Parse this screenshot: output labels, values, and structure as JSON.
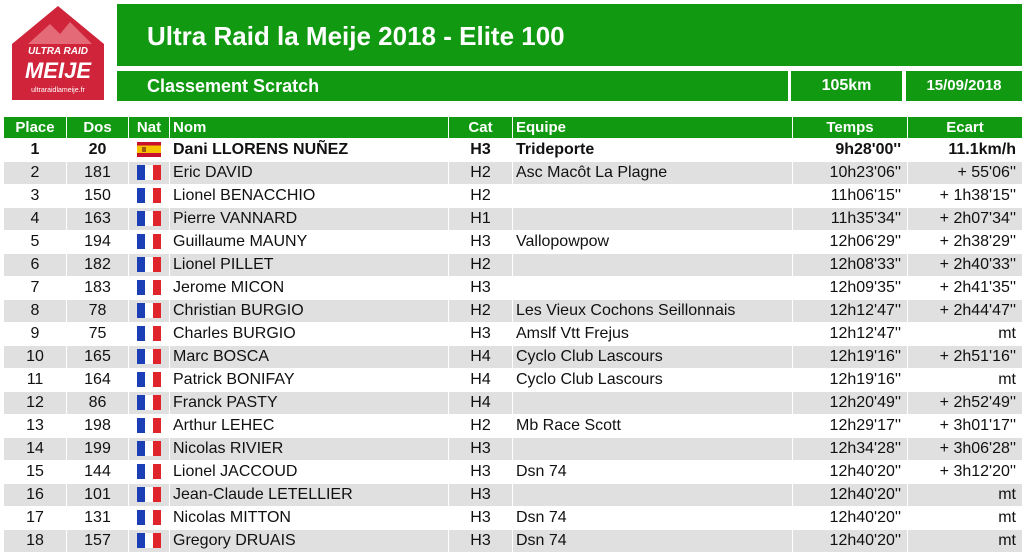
{
  "logo": {
    "line1": "ULTRA RAID",
    "line2": "MEIJE",
    "url": "ultraraidlameije.fr",
    "color": "#d0243b"
  },
  "header": {
    "title": "Ultra Raid la Meije 2018 - Elite 100",
    "subtitle": "Classement Scratch",
    "distance": "105km",
    "date": "15/09/2018"
  },
  "colors": {
    "accent": "#119a11",
    "row_alt": "#e0e0e0"
  },
  "columns": {
    "place": "Place",
    "dos": "Dos",
    "nat": "Nat",
    "nom": "Nom",
    "cat": "Cat",
    "equipe": "Equipe",
    "temps": "Temps",
    "ecart": "Ecart"
  },
  "rows": [
    {
      "place": "1",
      "dos": "20",
      "nat": "spain-flag-icon",
      "nom": "Dani LLORENS NUÑEZ",
      "cat": "H3",
      "equipe": "Trideporte",
      "temps": "9h28'00''",
      "ecart": "11.1km/h"
    },
    {
      "place": "2",
      "dos": "181",
      "nat": "france-flag-icon",
      "nom": "Eric DAVID",
      "cat": "H2",
      "equipe": "Asc Macôt La Plagne",
      "temps": "10h23'06''",
      "ecart": "+ 55'06''"
    },
    {
      "place": "3",
      "dos": "150",
      "nat": "france-flag-icon",
      "nom": "Lionel BENACCHIO",
      "cat": "H2",
      "equipe": "",
      "temps": "11h06'15''",
      "ecart": "+ 1h38'15''"
    },
    {
      "place": "4",
      "dos": "163",
      "nat": "france-flag-icon",
      "nom": "Pierre VANNARD",
      "cat": "H1",
      "equipe": "",
      "temps": "11h35'34''",
      "ecart": "+ 2h07'34''"
    },
    {
      "place": "5",
      "dos": "194",
      "nat": "france-flag-icon",
      "nom": "Guillaume MAUNY",
      "cat": "H3",
      "equipe": "Vallopowpow",
      "temps": "12h06'29''",
      "ecart": "+ 2h38'29''"
    },
    {
      "place": "6",
      "dos": "182",
      "nat": "france-flag-icon",
      "nom": "Lionel PILLET",
      "cat": "H2",
      "equipe": "",
      "temps": "12h08'33''",
      "ecart": "+ 2h40'33''"
    },
    {
      "place": "7",
      "dos": "183",
      "nat": "france-flag-icon",
      "nom": "Jerome MICON",
      "cat": "H3",
      "equipe": "",
      "temps": "12h09'35''",
      "ecart": "+ 2h41'35''"
    },
    {
      "place": "8",
      "dos": "78",
      "nat": "france-flag-icon",
      "nom": "Christian BURGIO",
      "cat": "H2",
      "equipe": "Les Vieux Cochons Seillonnais",
      "temps": "12h12'47''",
      "ecart": "+ 2h44'47''"
    },
    {
      "place": "9",
      "dos": "75",
      "nat": "france-flag-icon",
      "nom": "Charles BURGIO",
      "cat": "H3",
      "equipe": "Amslf Vtt Frejus",
      "temps": "12h12'47''",
      "ecart": "mt"
    },
    {
      "place": "10",
      "dos": "165",
      "nat": "france-flag-icon",
      "nom": "Marc BOSCA",
      "cat": "H4",
      "equipe": "Cyclo Club Lascours",
      "temps": "12h19'16''",
      "ecart": "+ 2h51'16''"
    },
    {
      "place": "11",
      "dos": "164",
      "nat": "france-flag-icon",
      "nom": "Patrick BONIFAY",
      "cat": "H4",
      "equipe": "Cyclo Club Lascours",
      "temps": "12h19'16''",
      "ecart": "mt"
    },
    {
      "place": "12",
      "dos": "86",
      "nat": "france-flag-icon",
      "nom": "Franck PASTY",
      "cat": "H4",
      "equipe": "",
      "temps": "12h20'49''",
      "ecart": "+ 2h52'49''"
    },
    {
      "place": "13",
      "dos": "198",
      "nat": "france-flag-icon",
      "nom": "Arthur LEHEC",
      "cat": "H2",
      "equipe": "Mb Race Scott",
      "temps": "12h29'17''",
      "ecart": "+ 3h01'17''"
    },
    {
      "place": "14",
      "dos": "199",
      "nat": "france-flag-icon",
      "nom": "Nicolas RIVIER",
      "cat": "H3",
      "equipe": "",
      "temps": "12h34'28''",
      "ecart": "+ 3h06'28''"
    },
    {
      "place": "15",
      "dos": "144",
      "nat": "france-flag-icon",
      "nom": "Lionel JACCOUD",
      "cat": "H3",
      "equipe": "Dsn 74",
      "temps": "12h40'20''",
      "ecart": "+ 3h12'20''"
    },
    {
      "place": "16",
      "dos": "101",
      "nat": "france-flag-icon",
      "nom": "Jean-Claude LETELLIER",
      "cat": "H3",
      "equipe": "",
      "temps": "12h40'20''",
      "ecart": "mt"
    },
    {
      "place": "17",
      "dos": "131",
      "nat": "france-flag-icon",
      "nom": "Nicolas MITTON",
      "cat": "H3",
      "equipe": "Dsn 74",
      "temps": "12h40'20''",
      "ecart": "mt"
    },
    {
      "place": "18",
      "dos": "157",
      "nat": "france-flag-icon",
      "nom": "Gregory DRUAIS",
      "cat": "H3",
      "equipe": "Dsn 74",
      "temps": "12h40'20''",
      "ecart": "mt"
    }
  ]
}
